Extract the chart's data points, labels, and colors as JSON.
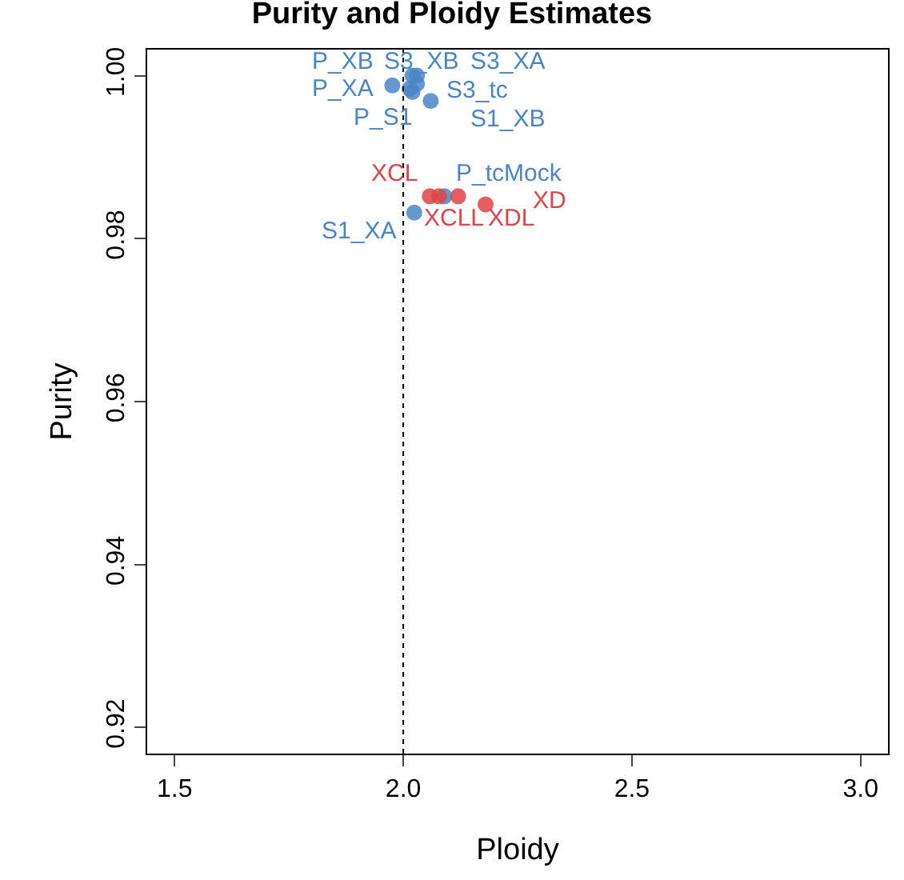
{
  "chart_data": {
    "type": "scatter",
    "title": "Purity and Ploidy Estimates",
    "xlabel": "Ploidy",
    "ylabel": "Purity",
    "xlim": [
      1.44,
      3.06
    ],
    "ylim": [
      0.9168,
      1.0032
    ],
    "xticks": [
      {
        "value": 1.5,
        "label": "1.5"
      },
      {
        "value": 2,
        "label": "2.0"
      },
      {
        "value": 2.5,
        "label": "2.5"
      },
      {
        "value": 3,
        "label": "3.0"
      }
    ],
    "yticks": [
      {
        "value": 0.92,
        "label": "0.92"
      },
      {
        "value": 0.94,
        "label": "0.94"
      },
      {
        "value": 0.96,
        "label": "0.96"
      },
      {
        "value": 0.98,
        "label": "0.98"
      },
      {
        "value": 1,
        "label": "1.00"
      }
    ],
    "series": [
      {
        "color": "#4a86c5",
        "x": [
          1.976,
          2.02,
          2.03,
          2.03,
          2.014,
          2.02,
          2.06,
          2.024,
          2.09
        ],
        "values": [
          0.9988,
          1.0,
          1.0,
          0.999,
          0.9984,
          0.998,
          0.9969,
          0.9832,
          0.9852
        ],
        "value_labels": [
          "P_XB",
          "S3_XB",
          "S3_XA",
          "S3_tc",
          "P_XA",
          "P_S1",
          "S1_XB",
          "S1_XA",
          "P_tcMock"
        ]
      },
      {
        "color": "#e04347",
        "x": [
          2.058,
          2.078,
          2.12,
          2.18
        ],
        "values": [
          0.9852,
          0.9852,
          0.9852,
          0.9842
        ],
        "value_labels": [
          "XCL",
          "XCLL",
          "XDL",
          "XD"
        ]
      }
    ],
    "ref_lines": [
      {
        "axis": "x",
        "value": 2,
        "color": "#000000",
        "line_style": "dotted"
      }
    ],
    "marker": "circle",
    "grid": false
  }
}
